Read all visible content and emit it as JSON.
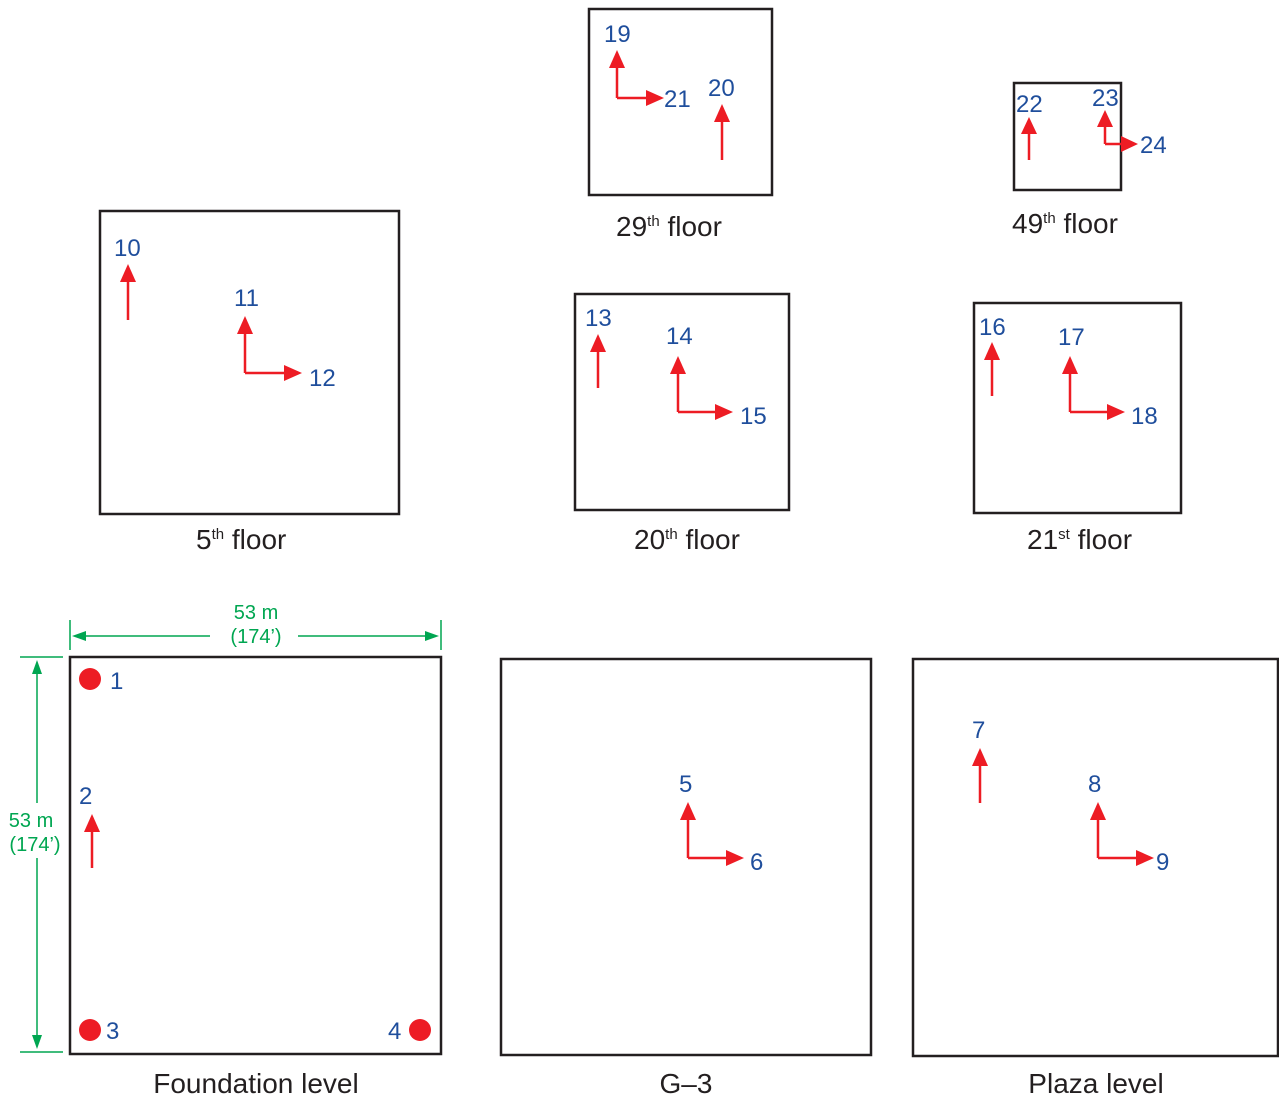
{
  "colors": {
    "sensor_arrow": "#ed1c24",
    "sensor_number": "#1f4e9c",
    "dimension": "#00a651",
    "outline": "#231f20"
  },
  "captions": {
    "floor29": {
      "num": "29",
      "sup": "th",
      "rest": " floor"
    },
    "floor49": {
      "num": "49",
      "sup": "th",
      "rest": " floor"
    },
    "floor5": {
      "num": "5",
      "sup": "th",
      "rest": " floor"
    },
    "floor20": {
      "num": "20",
      "sup": "th",
      "rest": " floor"
    },
    "floor21": {
      "num": "21",
      "sup": "st",
      "rest": " floor"
    },
    "foundation": "Foundation level",
    "g3": "G–3",
    "plaza": "Plaza level"
  },
  "dimensions": {
    "width_m": "53 m",
    "width_ft": "(174’)",
    "height_m": "53 m",
    "height_ft": "(174’)"
  },
  "sensors": {
    "s1": "1",
    "s2": "2",
    "s3": "3",
    "s4": "4",
    "s5": "5",
    "s6": "6",
    "s7": "7",
    "s8": "8",
    "s9": "9",
    "s10": "10",
    "s11": "11",
    "s12": "12",
    "s13": "13",
    "s14": "14",
    "s15": "15",
    "s16": "16",
    "s17": "17",
    "s18": "18",
    "s19": "19",
    "s20": "20",
    "s21": "21",
    "s22": "22",
    "s23": "23",
    "s24": "24"
  }
}
